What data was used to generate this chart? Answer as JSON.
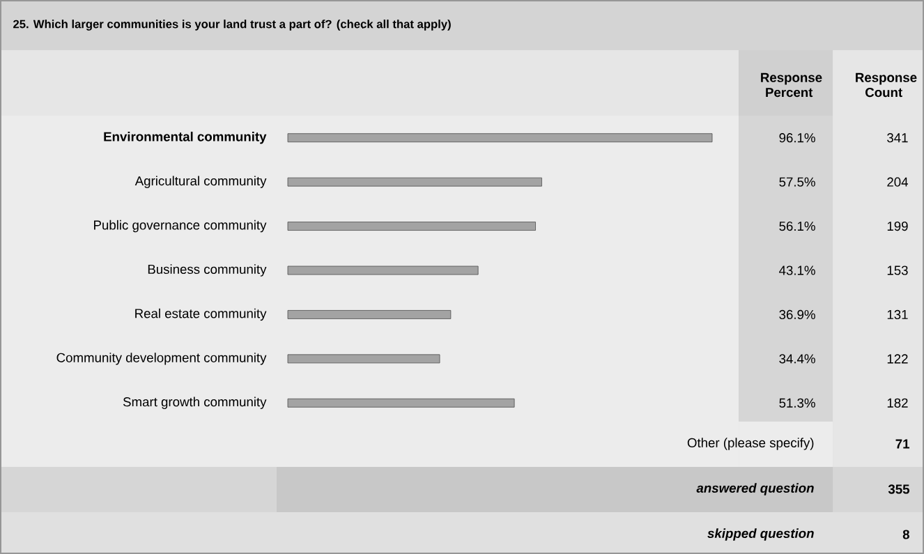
{
  "chart_data": {
    "type": "bar",
    "orientation": "horizontal",
    "title": "25. Which larger communities is your land trust a part of? (check all that apply)",
    "categories": [
      "Environmental community",
      "Agricultural community",
      "Public governance community",
      "Business community",
      "Real estate community",
      "Community development community",
      "Smart growth community"
    ],
    "values": [
      96.1,
      57.5,
      56.1,
      43.1,
      36.9,
      34.4,
      51.3
    ],
    "value_labels": [
      "96.1%",
      "57.5%",
      "56.1%",
      "43.1%",
      "36.9%",
      "34.4%",
      "51.3%"
    ],
    "color": "#a3a3a3",
    "annotations": [
      "Response Percent",
      "Response Count",
      "341",
      "204",
      "199",
      "153",
      "131",
      "122",
      "182",
      "Other (please specify)",
      "71",
      "answered question",
      "355",
      "skipped question",
      "8"
    ]
  }
}
